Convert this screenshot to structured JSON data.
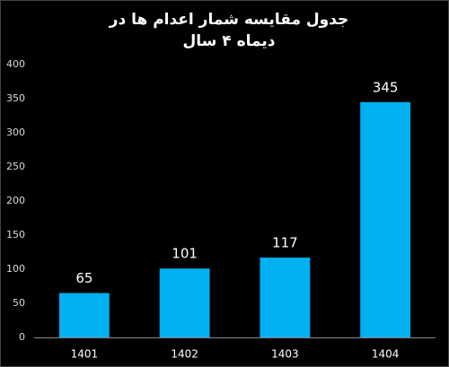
{
  "chart_data": {
    "type": "bar",
    "title": "جدول مقایسه شمار اعدام ها در",
    "subtitle": "دیماه ۴ سال",
    "categories": [
      "1401",
      "1402",
      "1403",
      "1404"
    ],
    "values": [
      65,
      101,
      117,
      345
    ],
    "color": "#00b0f0",
    "ylim": [
      0,
      400
    ],
    "yticks": [
      0,
      50,
      100,
      150,
      200,
      250,
      300,
      350,
      400
    ],
    "grid": false
  }
}
